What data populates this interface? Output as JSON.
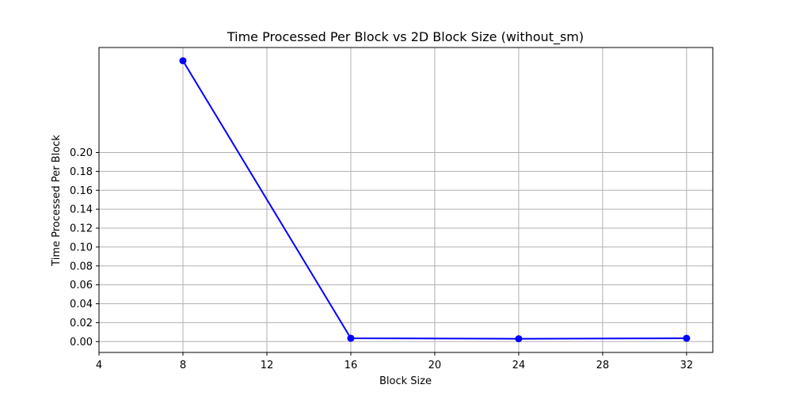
{
  "chart_data": {
    "type": "line",
    "title": "Time Processed Per Block vs 2D Block Size (without_sm)",
    "xlabel": "Block Size",
    "ylabel": "Time Processed Per Block",
    "xlim": [
      4,
      33.25
    ],
    "ylim": [
      -0.0115,
      0.311
    ],
    "xticks": [
      4,
      8,
      12,
      16,
      20,
      24,
      28,
      32
    ],
    "xtick_labels": [
      "4",
      "8",
      "12",
      "16",
      "20",
      "24",
      "28",
      "32"
    ],
    "yticks": [
      0.0,
      0.02,
      0.04,
      0.06,
      0.08,
      0.1,
      0.12,
      0.14,
      0.16,
      0.18,
      0.2
    ],
    "ytick_labels": [
      "0.00",
      "0.02",
      "0.04",
      "0.06",
      "0.08",
      "0.10",
      "0.12",
      "0.14",
      "0.16",
      "0.18",
      "0.20"
    ],
    "grid": true,
    "series": [
      {
        "color": "#0000ff",
        "marker": "circle",
        "x": [
          8,
          16,
          24,
          32
        ],
        "y": [
          0.297,
          0.0035,
          0.003,
          0.0035
        ]
      }
    ]
  }
}
